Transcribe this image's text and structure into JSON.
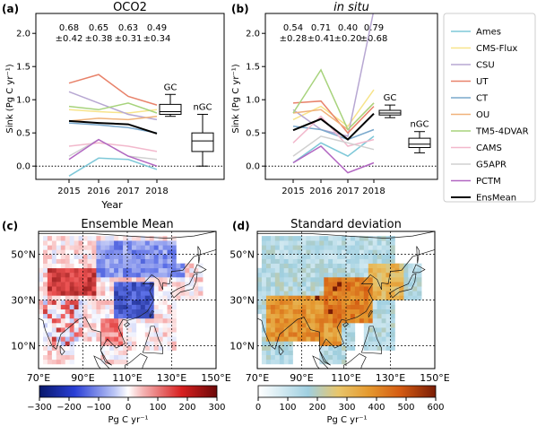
{
  "chart_data": [
    {
      "panel_label": "(a)",
      "type": "line",
      "title": "OCO2",
      "xlabel": "Year",
      "ylabel": "Sink (Pg C yr⁻¹)",
      "x": [
        2015,
        2016,
        2017,
        2018
      ],
      "ylim": [
        -0.2,
        2.3
      ],
      "yticks": [
        "0.0",
        "0.5",
        "1.0",
        "1.5",
        "2.0"
      ],
      "summary": [
        {
          "value": "0.68",
          "spread": "±0.42"
        },
        {
          "value": "0.65",
          "spread": "±0.38"
        },
        {
          "value": "0.63",
          "spread": "±0.31"
        },
        {
          "value": "0.49",
          "spread": "±0.34"
        }
      ],
      "series": [
        {
          "name": "Ames",
          "color": "#7ec8d8",
          "values": [
            -0.15,
            0.12,
            0.1,
            -0.05
          ]
        },
        {
          "name": "CMS-Flux",
          "color": "#f7e48b",
          "values": [
            0.85,
            0.82,
            0.8,
            0.85
          ]
        },
        {
          "name": "CSU",
          "color": "#b7a7d2",
          "values": [
            1.12,
            0.95,
            0.78,
            0.7
          ]
        },
        {
          "name": "UT",
          "color": "#e8826a",
          "values": [
            1.25,
            1.38,
            1.05,
            0.92
          ]
        },
        {
          "name": "CT",
          "color": "#7aa8cc",
          "values": [
            0.65,
            0.62,
            0.58,
            0.5
          ]
        },
        {
          "name": "OU",
          "color": "#f0b27a",
          "values": [
            0.68,
            0.72,
            0.7,
            0.75
          ]
        },
        {
          "name": "TM5-4DVAR",
          "color": "#a7d37c",
          "values": [
            0.9,
            0.85,
            0.95,
            0.8
          ]
        },
        {
          "name": "CAMS",
          "color": "#f2b8cc",
          "values": [
            0.3,
            0.35,
            0.3,
            0.22
          ]
        },
        {
          "name": "G5APR",
          "color": "#d0d0d0",
          "values": [
            0.15,
            0.4,
            0.15,
            0.1
          ]
        },
        {
          "name": "PCTM",
          "color": "#b267c2",
          "values": [
            0.1,
            0.4,
            0.15,
            0.0
          ]
        },
        {
          "name": "EnsMean",
          "color": "#000000",
          "values": [
            0.68,
            0.65,
            0.63,
            0.49
          ]
        }
      ],
      "boxes": [
        {
          "label": "GC",
          "whisker_low": 0.75,
          "q1": 0.78,
          "median": 0.82,
          "q3": 0.93,
          "whisker_high": 1.08
        },
        {
          "label": "nGC",
          "whisker_low": 0.0,
          "q1": 0.22,
          "median": 0.38,
          "q3": 0.5,
          "whisker_high": 0.78
        }
      ]
    },
    {
      "panel_label": "(b)",
      "type": "line",
      "title": "in situ",
      "xlabel": "",
      "ylabel": "Sink (Pg C yr⁻¹)",
      "x": [
        2015,
        2016,
        2017,
        2018
      ],
      "ylim": [
        -0.2,
        2.3
      ],
      "yticks": [
        "0.0",
        "0.5",
        "1.0",
        "1.5",
        "2.0"
      ],
      "summary": [
        {
          "value": "0.54",
          "spread": "±0.28"
        },
        {
          "value": "0.71",
          "spread": "±0.41"
        },
        {
          "value": "0.40",
          "spread": "±0.20"
        },
        {
          "value": "0.79",
          "spread": "±0.68"
        }
      ],
      "series": [
        {
          "name": "Ames",
          "color": "#7ec8d8",
          "values": [
            0.05,
            0.35,
            0.15,
            0.45
          ]
        },
        {
          "name": "CMS-Flux",
          "color": "#f7e48b",
          "values": [
            0.7,
            0.9,
            0.6,
            1.15
          ]
        },
        {
          "name": "CSU",
          "color": "#b7a7d2",
          "values": [
            0.85,
            0.55,
            0.45,
            2.35
          ]
        },
        {
          "name": "UT",
          "color": "#e8826a",
          "values": [
            0.95,
            0.98,
            0.5,
            0.9
          ]
        },
        {
          "name": "CT",
          "color": "#7aa8cc",
          "values": [
            0.6,
            0.55,
            0.4,
            0.55
          ]
        },
        {
          "name": "OU",
          "color": "#f0b27a",
          "values": [
            0.8,
            0.85,
            0.55,
            0.95
          ]
        },
        {
          "name": "TM5-4DVAR",
          "color": "#a7d37c",
          "values": [
            0.8,
            1.45,
            0.55,
            0.95
          ]
        },
        {
          "name": "CAMS",
          "color": "#f2b8cc",
          "values": [
            0.35,
            0.75,
            0.3,
            0.4
          ]
        },
        {
          "name": "G5APR",
          "color": "#d0d0d0",
          "values": [
            0.15,
            0.45,
            0.35,
            0.25
          ]
        },
        {
          "name": "PCTM",
          "color": "#b267c2",
          "values": [
            0.05,
            0.3,
            -0.1,
            0.05
          ]
        },
        {
          "name": "EnsMean",
          "color": "#000000",
          "values": [
            0.54,
            0.71,
            0.4,
            0.79
          ]
        }
      ],
      "boxes": [
        {
          "label": "GC",
          "whisker_low": 0.73,
          "q1": 0.77,
          "median": 0.8,
          "q3": 0.84,
          "whisker_high": 0.92
        },
        {
          "label": "nGC",
          "whisker_low": 0.2,
          "q1": 0.28,
          "median": 0.33,
          "q3": 0.42,
          "whisker_high": 0.52
        }
      ]
    },
    {
      "panel_label": "(c)",
      "type": "heatmap",
      "title": "Ensemble Mean",
      "lon_ticks": [
        "70°E",
        "90°E",
        "110°E",
        "130°E",
        "150°E"
      ],
      "lat_ticks": [
        "10°N",
        "30°N",
        "50°N"
      ],
      "colorbar_min": -300,
      "colorbar_max": 300,
      "colorbar_ticks": [
        "−300",
        "−200",
        "−100",
        "0",
        "100",
        "200",
        "300"
      ],
      "colorbar_label": "Pg C yr⁻¹",
      "colormap": "blue-white-red"
    },
    {
      "panel_label": "(d)",
      "type": "heatmap",
      "title": "Standard deviation",
      "lon_ticks": [
        "70°E",
        "90°E",
        "110°E",
        "130°E",
        "150°E"
      ],
      "lat_ticks": [
        "10°N",
        "30°N",
        "50°N"
      ],
      "colorbar_min": 0,
      "colorbar_max": 600,
      "colorbar_ticks": [
        "0",
        "100",
        "200",
        "300",
        "400",
        "500",
        "600"
      ],
      "colorbar_label": "Pg C yr⁻¹",
      "colormap": "white-blue-orange-red"
    }
  ]
}
